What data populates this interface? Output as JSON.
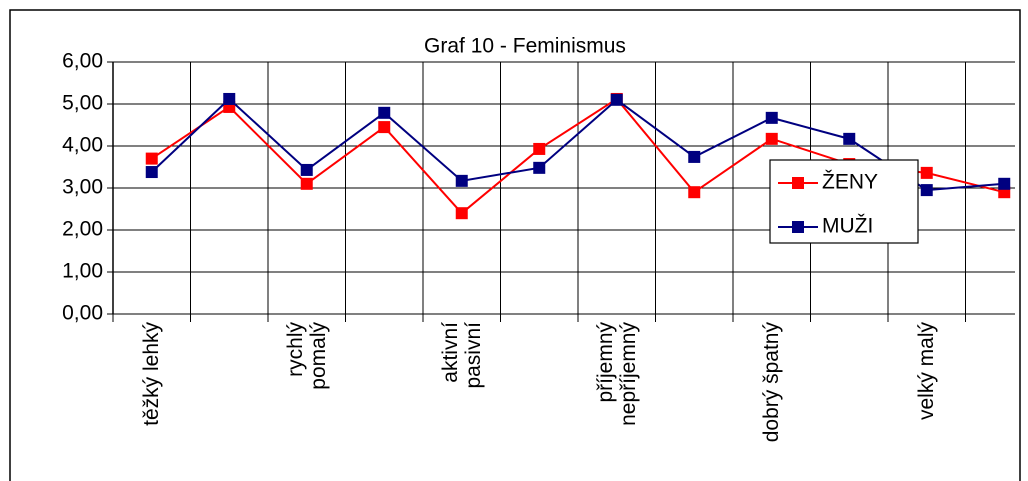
{
  "chart_data": {
    "type": "line",
    "title": "Graf 10 - Feminismus",
    "categories": [
      "těžký lehký",
      null,
      "rychlý pomalý",
      null,
      "aktivní pasivní",
      null,
      "příjemný nepříjemný",
      null,
      "dobrý špatný",
      null,
      "velký malý",
      null
    ],
    "series": [
      {
        "name": "ŽENY",
        "color": "#ff0000",
        "values": [
          3.7,
          4.93,
          3.1,
          4.45,
          2.4,
          3.93,
          5.12,
          2.9,
          4.17,
          3.57,
          3.36,
          2.9
        ]
      },
      {
        "name": "MUŽI",
        "color": "#000080",
        "values": [
          3.38,
          5.12,
          3.43,
          4.79,
          3.17,
          3.48,
          5.1,
          3.74,
          4.67,
          4.17,
          2.95,
          3.1
        ]
      }
    ],
    "ylim": [
      0,
      6
    ],
    "yticks": [
      {
        "value": 0,
        "label": "0,00"
      },
      {
        "value": 1,
        "label": "1,00"
      },
      {
        "value": 2,
        "label": "2,00"
      },
      {
        "value": 3,
        "label": "3,00"
      },
      {
        "value": 4,
        "label": "4,00"
      },
      {
        "value": 5,
        "label": "5,00"
      },
      {
        "value": 6,
        "label": "6,00"
      }
    ],
    "grid": true
  }
}
